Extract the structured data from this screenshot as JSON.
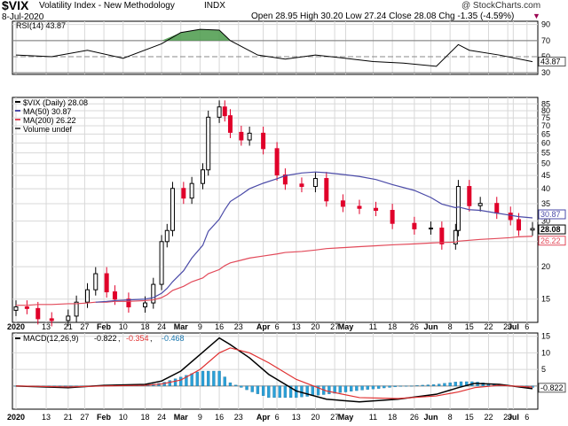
{
  "header": {
    "symbol": "$VIX",
    "name": "Volatility Index - New Methodology",
    "exchange": "INDX",
    "date": "8-Jul-2020",
    "ohlc_text": "Open 28.95  High 30.20  Low 27.24  Close 28.08  Chg -1.35 (-4.59%)",
    "chg_marker": "▼",
    "copyright": "@ StockCharts.com"
  },
  "colors": {
    "up_candle": "#000000",
    "down_candle": "#e0002a",
    "ma50": "#4b4ba8",
    "ma200": "#e24a5a",
    "rsi_line": "#000000",
    "rsi_fill": "#4a9a4a",
    "macd_line": "#000000",
    "macd_signal": "#e03030",
    "macd_hist": "#2aa0d8",
    "grid": "#d8d8d8"
  },
  "chart_data": [
    {
      "type": "line",
      "panel": "rsi",
      "legend": "RSI(14) 43.87",
      "levels": [
        70,
        30
      ],
      "ylim": [
        28,
        94
      ],
      "ticks": [
        90,
        70,
        50,
        30
      ],
      "last_label": "43.87",
      "x": [
        "2020-01-02",
        "2020-01-15",
        "2020-01-28",
        "2020-02-10",
        "2020-02-24",
        "2020-03-02",
        "2020-03-09",
        "2020-03-16",
        "2020-03-20",
        "2020-03-30",
        "2020-04-09",
        "2020-04-20",
        "2020-05-01",
        "2020-05-11",
        "2020-05-22",
        "2020-06-03",
        "2020-06-11",
        "2020-06-15",
        "2020-06-26",
        "2020-07-08"
      ],
      "series": [
        {
          "name": "",
          "values": [
            52,
            50,
            58,
            48,
            66,
            80,
            84,
            83,
            70,
            52,
            47,
            52,
            48,
            44,
            42,
            38,
            65,
            58,
            52,
            43.87
          ]
        }
      ]
    },
    {
      "type": "candlestick",
      "panel": "price",
      "legend": [
        "$VIX (Daily) 28.08",
        "MA(50) 30.87",
        "MA(200) 26.22",
        "Volume undef"
      ],
      "yscale": "log",
      "ylim": [
        12.2,
        90
      ],
      "ticks": [
        85,
        80,
        75,
        70,
        65,
        60,
        55,
        50,
        45,
        40,
        35,
        30,
        25,
        20,
        15
      ],
      "last_labels": [
        "30.87",
        "28.08",
        "26.22"
      ],
      "x": [
        "2020-01-02",
        "2020-01-06",
        "2020-01-10",
        "2020-01-15",
        "2020-01-21",
        "2020-01-24",
        "2020-01-28",
        "2020-01-31",
        "2020-02-04",
        "2020-02-07",
        "2020-02-12",
        "2020-02-18",
        "2020-02-21",
        "2020-02-24",
        "2020-02-26",
        "2020-02-28",
        "2020-03-03",
        "2020-03-06",
        "2020-03-10",
        "2020-03-12",
        "2020-03-16",
        "2020-03-18",
        "2020-03-20",
        "2020-03-24",
        "2020-03-27",
        "2020-04-01",
        "2020-04-06",
        "2020-04-09",
        "2020-04-15",
        "2020-04-20",
        "2020-04-24",
        "2020-04-30",
        "2020-05-06",
        "2020-05-12",
        "2020-05-18",
        "2020-05-26",
        "2020-06-01",
        "2020-06-05",
        "2020-06-10",
        "2020-06-11",
        "2020-06-15",
        "2020-06-19",
        "2020-06-25",
        "2020-06-30",
        "2020-07-03",
        "2020-07-08"
      ],
      "close": [
        14.0,
        13.8,
        12.6,
        12.4,
        12.9,
        14.6,
        16.3,
        18.8,
        16.0,
        15.0,
        14.0,
        14.5,
        17.1,
        25.0,
        27.6,
        40.1,
        36.8,
        41.9,
        47.3,
        75.5,
        82.7,
        76.5,
        66.0,
        61.7,
        65.5,
        57.1,
        45.2,
        41.7,
        40.8,
        43.8,
        35.9,
        34.2,
        33.6,
        33.0,
        29.4,
        28.0,
        28.2,
        24.5,
        27.6,
        40.8,
        34.4,
        35.1,
        32.2,
        30.4,
        27.7,
        28.08
      ],
      "ma50": [
        null,
        null,
        null,
        null,
        null,
        null,
        null,
        14.6,
        14.7,
        14.8,
        14.9,
        15.0,
        15.2,
        15.8,
        16.5,
        17.5,
        19.3,
        21.6,
        24.2,
        27.4,
        30.5,
        33.2,
        35.7,
        38.0,
        40.0,
        42.0,
        43.7,
        44.9,
        46.0,
        46.4,
        46.1,
        45.4,
        44.6,
        43.4,
        41.5,
        39.4,
        37.0,
        34.9,
        33.8,
        34.0,
        33.2,
        33.0,
        32.2,
        31.6,
        31.2,
        30.87
      ],
      "ma200": [
        14.2,
        14.2,
        14.3,
        14.3,
        14.4,
        14.4,
        14.5,
        14.6,
        14.6,
        14.7,
        14.7,
        14.8,
        14.9,
        15.2,
        15.6,
        16.2,
        16.8,
        17.5,
        18.1,
        18.8,
        19.5,
        20.2,
        20.7,
        21.2,
        21.6,
        22.0,
        22.4,
        22.7,
        22.9,
        23.2,
        23.5,
        23.7,
        23.9,
        24.1,
        24.3,
        24.5,
        24.7,
        24.8,
        24.9,
        25.1,
        25.3,
        25.5,
        25.7,
        25.9,
        26.1,
        26.22
      ]
    },
    {
      "type": "line",
      "panel": "macd",
      "legend": "MACD(12,26,9)",
      "legend_values": [
        "-0.822",
        "-0.354",
        "-0.468"
      ],
      "ylim": [
        -7,
        16
      ],
      "ticks": [
        15,
        10,
        5
      ],
      "last_label": "-0.822",
      "x": [
        "2020-01-02",
        "2020-01-21",
        "2020-02-03",
        "2020-02-18",
        "2020-02-24",
        "2020-03-02",
        "2020-03-09",
        "2020-03-16",
        "2020-03-20",
        "2020-03-27",
        "2020-04-03",
        "2020-04-13",
        "2020-04-24",
        "2020-05-06",
        "2020-05-20",
        "2020-06-03",
        "2020-06-11",
        "2020-06-17",
        "2020-06-26",
        "2020-07-08"
      ],
      "series": [
        {
          "name": "",
          "values": [
            0,
            -0.5,
            0.2,
            0.5,
            1.5,
            4.5,
            9.5,
            14.5,
            12.5,
            8.5,
            3.5,
            -1.5,
            -4.0,
            -4.8,
            -4.0,
            -2.5,
            -0.5,
            0.8,
            0.5,
            -0.822
          ]
        },
        {
          "name": "",
          "values": [
            0,
            -0.3,
            0,
            0.2,
            0.6,
            1.8,
            5.0,
            10.0,
            11.5,
            10.0,
            7.0,
            2.0,
            -1.5,
            -3.5,
            -3.8,
            -3.0,
            -1.8,
            -0.5,
            0.2,
            -0.354
          ]
        }
      ],
      "histogram": [
        0,
        -0.2,
        0.2,
        0.3,
        0.9,
        2.7,
        4.5,
        4.5,
        1.0,
        -1.5,
        -3.5,
        -3.5,
        -2.5,
        -1.3,
        -0.2,
        0.5,
        1.3,
        1.3,
        0.3,
        -0.468
      ]
    }
  ],
  "x_axis": {
    "labels": [
      {
        "text": "2020",
        "date": "2020-01-02",
        "bold": true
      },
      {
        "text": "13",
        "date": "2020-01-13"
      },
      {
        "text": "21",
        "date": "2020-01-21"
      },
      {
        "text": "27",
        "date": "2020-01-27"
      },
      {
        "text": "Feb",
        "date": "2020-02-03",
        "bold": true
      },
      {
        "text": "10",
        "date": "2020-02-10"
      },
      {
        "text": "18",
        "date": "2020-02-18"
      },
      {
        "text": "24",
        "date": "2020-02-24"
      },
      {
        "text": "Mar",
        "date": "2020-03-02",
        "bold": true
      },
      {
        "text": "9",
        "date": "2020-03-09"
      },
      {
        "text": "16",
        "date": "2020-03-16"
      },
      {
        "text": "23",
        "date": "2020-03-23"
      },
      {
        "text": "Apr",
        "date": "2020-04-01",
        "bold": true
      },
      {
        "text": "6",
        "date": "2020-04-06"
      },
      {
        "text": "13",
        "date": "2020-04-13"
      },
      {
        "text": "20",
        "date": "2020-04-20"
      },
      {
        "text": "27",
        "date": "2020-04-27"
      },
      {
        "text": "May",
        "date": "2020-05-01",
        "bold": true
      },
      {
        "text": "11",
        "date": "2020-05-11"
      },
      {
        "text": "18",
        "date": "2020-05-18"
      },
      {
        "text": "26",
        "date": "2020-05-26"
      },
      {
        "text": "Jun",
        "date": "2020-06-01",
        "bold": true
      },
      {
        "text": "8",
        "date": "2020-06-08"
      },
      {
        "text": "15",
        "date": "2020-06-15"
      },
      {
        "text": "22",
        "date": "2020-06-22"
      },
      {
        "text": "29",
        "date": "2020-06-29"
      },
      {
        "text": "Jul",
        "date": "2020-07-01",
        "bold": true
      },
      {
        "text": "6",
        "date": "2020-07-06"
      }
    ]
  }
}
